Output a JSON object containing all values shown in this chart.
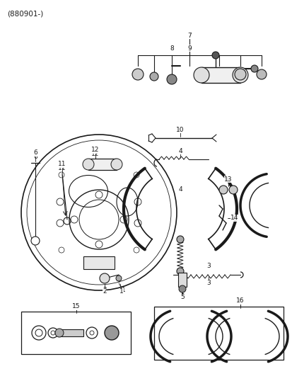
{
  "title": "(880901-)",
  "bg": "#ffffff",
  "lc": "#1a1a1a",
  "tc": "#1a1a1a",
  "fig_width": 4.14,
  "fig_height": 5.38,
  "dpi": 100
}
